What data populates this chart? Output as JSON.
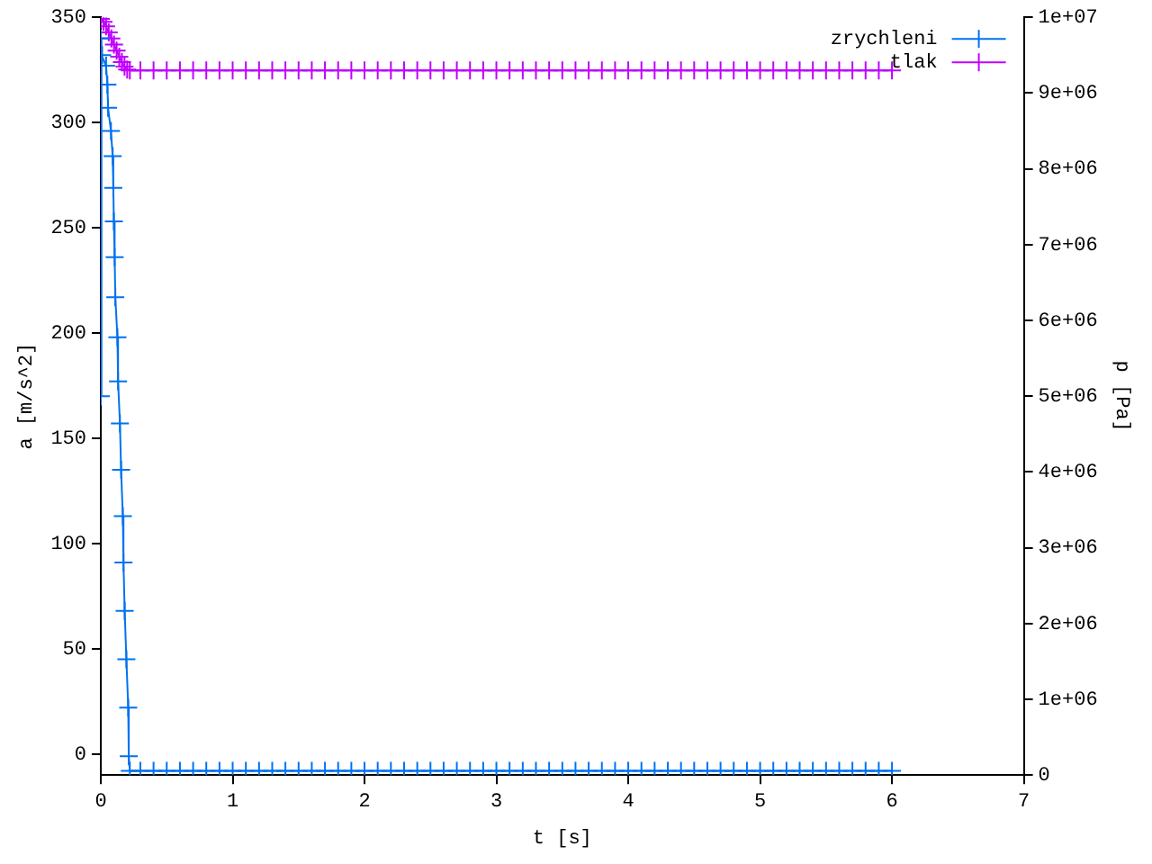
{
  "chart_data": {
    "type": "line",
    "xlabel": "t [s]",
    "ylabel": "a [m/s^2]",
    "y2label": "p [Pa]",
    "legend": "top right",
    "marker": "cross",
    "grid": false,
    "xlim": [
      0,
      7
    ],
    "xticks": [
      0,
      1,
      2,
      3,
      4,
      5,
      6,
      7
    ],
    "ylim": [
      -10,
      350
    ],
    "yticks": [
      0,
      50,
      100,
      150,
      200,
      250,
      300,
      350
    ],
    "y2lim": [
      0,
      10000000
    ],
    "y2ticks": [
      {
        "value": 0,
        "label": "0"
      },
      {
        "value": 1000000,
        "label": "1e+06"
      },
      {
        "value": 2000000,
        "label": "2e+06"
      },
      {
        "value": 3000000,
        "label": "3e+06"
      },
      {
        "value": 4000000,
        "label": "4e+06"
      },
      {
        "value": 5000000,
        "label": "5e+06"
      },
      {
        "value": 6000000,
        "label": "6e+06"
      },
      {
        "value": 7000000,
        "label": "7e+06"
      },
      {
        "value": 8000000,
        "label": "8e+06"
      },
      {
        "value": 9000000,
        "label": "9e+06"
      },
      {
        "value": 10000000,
        "label": "1e+07"
      }
    ],
    "series": [
      {
        "name": "zrychleni",
        "color": "#0072f0",
        "x": [
          0,
          0,
          0.01,
          0.04,
          0.05,
          0.055,
          0.077,
          0.09,
          0.095,
          0.099,
          0.105,
          0.11,
          0.126,
          0.131,
          0.145,
          0.154,
          0.167,
          0.172,
          0.181,
          0.194,
          0.208,
          0.212,
          0.22,
          0.3,
          0.4,
          0.5,
          0.6,
          0.7,
          0.8,
          0.9,
          1.0,
          1.1,
          1.2,
          1.3,
          1.4,
          1.5,
          1.6,
          1.7,
          1.8,
          1.9,
          2.0,
          2.1,
          2.2,
          2.3,
          2.4,
          2.5,
          2.6,
          2.7,
          2.8,
          2.9,
          3.0,
          3.1,
          3.2,
          3.3,
          3.4,
          3.5,
          3.6,
          3.7,
          3.8,
          3.9,
          4.0,
          4.1,
          4.2,
          4.3,
          4.4,
          4.5,
          4.6,
          4.7,
          4.8,
          4.9,
          5.0,
          5.1,
          5.2,
          5.3,
          5.4,
          5.5,
          5.6,
          5.7,
          5.8,
          5.9,
          6.0
        ],
        "values": [
          170,
          340,
          332,
          327,
          318,
          307,
          296,
          284,
          269,
          253,
          236,
          217,
          198,
          177,
          157,
          135,
          113,
          91,
          68,
          45,
          22,
          -1,
          -8,
          -8,
          -8,
          -8,
          -8,
          -8,
          -8,
          -8,
          -8,
          -8,
          -8,
          -8,
          -8,
          -8,
          -8,
          -8,
          -8,
          -8,
          -8,
          -8,
          -8,
          -8,
          -8,
          -8,
          -8,
          -8,
          -8,
          -8,
          -8,
          -8,
          -8,
          -8,
          -8,
          -8,
          -8,
          -8,
          -8,
          -8,
          -8,
          -8,
          -8,
          -8,
          -8,
          -8,
          -8,
          -8,
          -8,
          -8,
          -8,
          -8,
          -8,
          -8,
          -8,
          -8,
          -8,
          -8,
          -8,
          -8,
          -8
        ]
      },
      {
        "name": "tlak",
        "color": "#c000ff",
        "axis": "y2",
        "x": [
          0,
          0.02,
          0.04,
          0.06,
          0.08,
          0.1,
          0.12,
          0.14,
          0.16,
          0.18,
          0.2,
          0.22,
          0.3,
          0.4,
          0.5,
          0.6,
          0.7,
          0.8,
          0.9,
          1.0,
          1.1,
          1.2,
          1.3,
          1.4,
          1.5,
          1.6,
          1.7,
          1.8,
          1.9,
          2.0,
          2.1,
          2.2,
          2.3,
          2.4,
          2.5,
          2.6,
          2.7,
          2.8,
          2.9,
          3.0,
          3.1,
          3.2,
          3.3,
          3.4,
          3.5,
          3.6,
          3.7,
          3.8,
          3.9,
          4.0,
          4.1,
          4.2,
          4.3,
          4.4,
          4.5,
          4.6,
          4.7,
          4.8,
          4.9,
          5.0,
          5.1,
          5.2,
          5.3,
          5.4,
          5.5,
          5.6,
          5.7,
          5.8,
          5.9,
          6.0
        ],
        "values": [
          9980000,
          9940000,
          9880000,
          9800000,
          9720000,
          9640000,
          9560000,
          9480000,
          9410000,
          9350000,
          9310000,
          9300000,
          9300000,
          9300000,
          9300000,
          9300000,
          9300000,
          9300000,
          9300000,
          9300000,
          9300000,
          9300000,
          9300000,
          9300000,
          9300000,
          9300000,
          9300000,
          9300000,
          9300000,
          9300000,
          9300000,
          9300000,
          9300000,
          9300000,
          9300000,
          9300000,
          9300000,
          9300000,
          9300000,
          9300000,
          9300000,
          9300000,
          9300000,
          9300000,
          9300000,
          9300000,
          9300000,
          9300000,
          9300000,
          9300000,
          9300000,
          9300000,
          9300000,
          9300000,
          9300000,
          9300000,
          9300000,
          9300000,
          9300000,
          9300000,
          9300000,
          9300000,
          9300000,
          9300000,
          9300000,
          9300000,
          9300000,
          9300000,
          9300000,
          9300000
        ]
      }
    ]
  }
}
